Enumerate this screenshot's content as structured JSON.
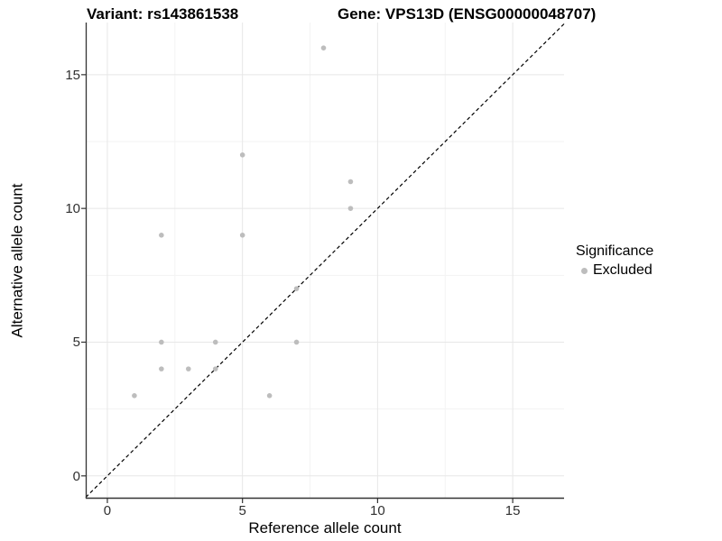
{
  "chart_data": {
    "type": "scatter",
    "title_left": "Variant: rs143861538",
    "title_right": "Gene: VPS13D (ENSG00000048707)",
    "xlabel": "Reference allele count",
    "ylabel": "Alternative allele count",
    "xlim": [
      -0.8,
      16.9
    ],
    "ylim": [
      -0.85,
      16.95
    ],
    "x_ticks": [
      0,
      5,
      10,
      15
    ],
    "y_ticks": [
      0,
      5,
      10,
      15
    ],
    "x_minor_breaks": [
      2.5,
      7.5,
      12.5
    ],
    "y_minor_breaks": [
      2.5,
      7.5,
      12.5
    ],
    "grid": "on",
    "series": [
      {
        "name": "Excluded",
        "color": "#bdbdbd",
        "points": [
          [
            1,
            3
          ],
          [
            2,
            4
          ],
          [
            2,
            5
          ],
          [
            2,
            9
          ],
          [
            3,
            4
          ],
          [
            4,
            4
          ],
          [
            4,
            5
          ],
          [
            5,
            9
          ],
          [
            5,
            12
          ],
          [
            6,
            3
          ],
          [
            7,
            5
          ],
          [
            7,
            7
          ],
          [
            8,
            16
          ],
          [
            9,
            10
          ],
          [
            9,
            11
          ]
        ]
      }
    ],
    "reference_line": {
      "kind": "identity y=x",
      "style": "dashed",
      "color": "#000000"
    },
    "legend": {
      "position": "right",
      "title": "Significance",
      "items": [
        {
          "label": "Excluded",
          "color": "#bdbdbd"
        }
      ]
    }
  },
  "colors": {
    "background": "#ffffff",
    "grid_major": "#e7e7e7",
    "grid_minor": "#f3f3f3",
    "axis_line": "#333333",
    "tick_mark": "#333333",
    "tick_text": "#303030",
    "point": "#bdbdbd"
  }
}
